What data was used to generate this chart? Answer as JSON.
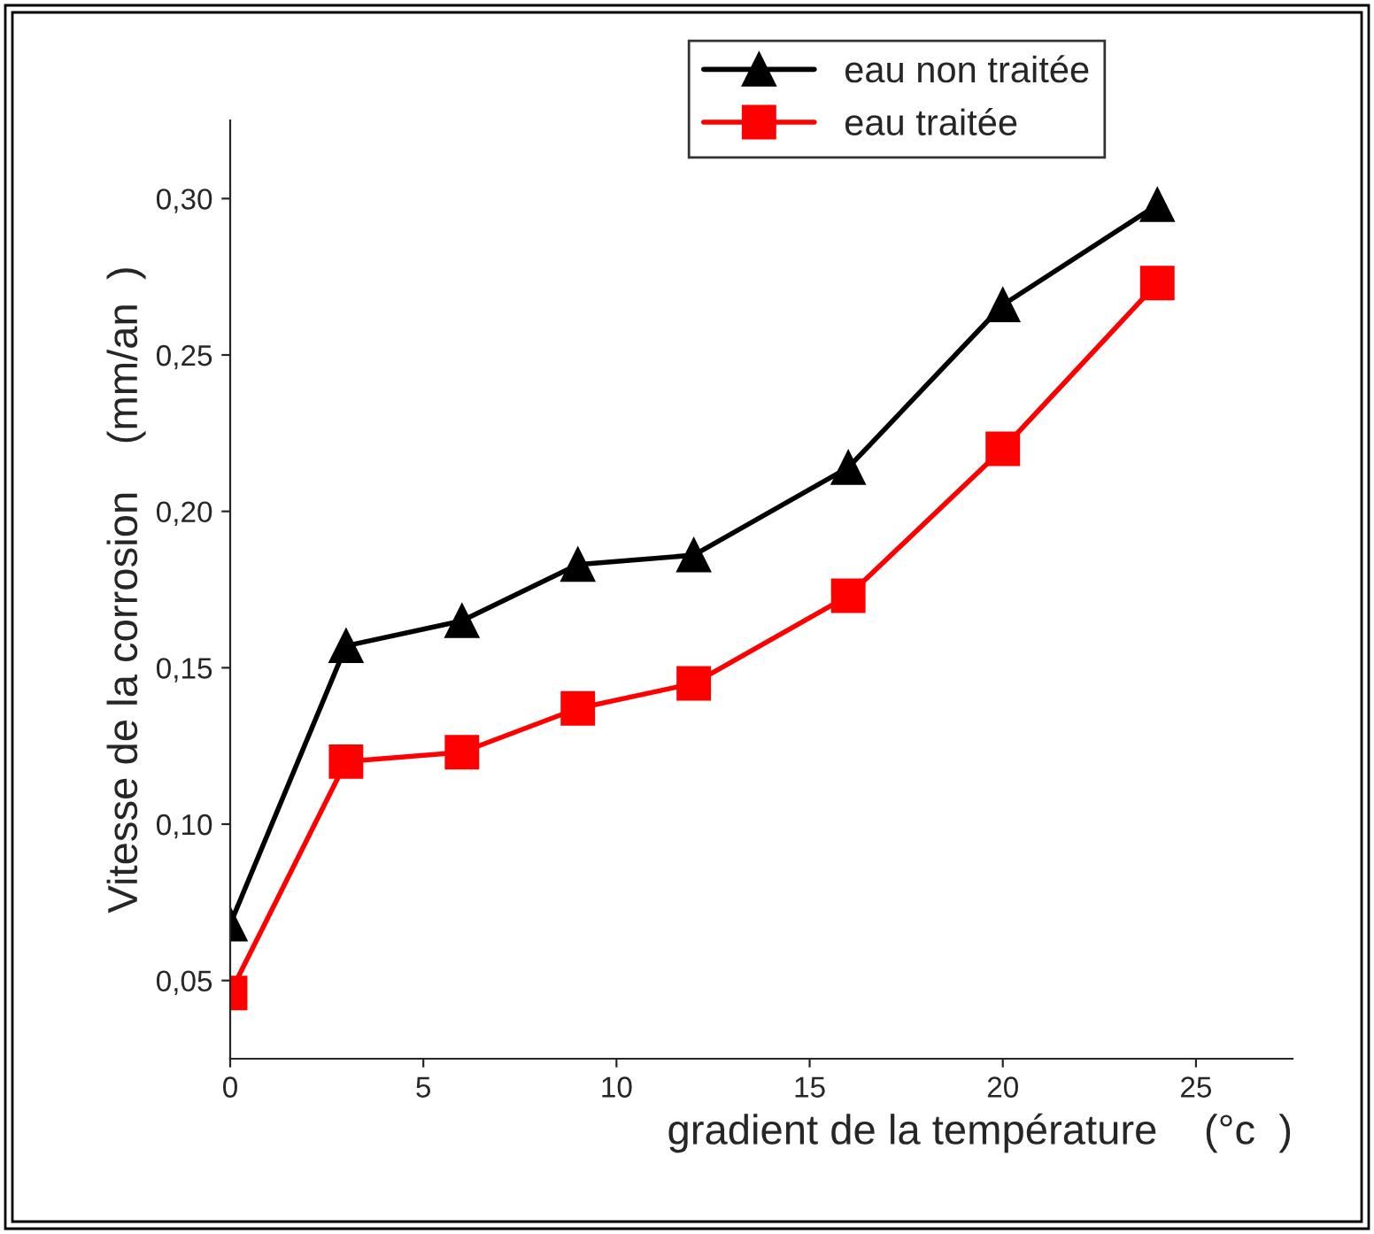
{
  "chart_data": {
    "type": "line",
    "xlabel": "gradient de la température    (°c  )",
    "ylabel": "Vitesse de la corrosion    (mm/an  )",
    "x": [
      0,
      3,
      6,
      9,
      12,
      16,
      20,
      24
    ],
    "series": [
      {
        "name": "eau non traitée",
        "color": "#000000",
        "marker": "triangle",
        "values": [
          0.068,
          0.157,
          0.165,
          0.183,
          0.186,
          0.214,
          0.266,
          0.298
        ]
      },
      {
        "name": "eau traitée",
        "color": "#ff0000",
        "marker": "square",
        "values": [
          0.046,
          0.12,
          0.123,
          0.137,
          0.145,
          0.173,
          0.22,
          0.273
        ]
      }
    ],
    "xlim": [
      0,
      27.5
    ],
    "ylim": [
      0.025,
      0.325
    ],
    "xticks": [
      0,
      5,
      10,
      15,
      20,
      25
    ],
    "yticks": [
      {
        "value": 0.05,
        "label": "0,05"
      },
      {
        "value": 0.1,
        "label": "0,10"
      },
      {
        "value": 0.15,
        "label": "0,15"
      },
      {
        "value": 0.2,
        "label": "0,20"
      },
      {
        "value": 0.25,
        "label": "0,25"
      },
      {
        "value": 0.3,
        "label": "0,30"
      }
    ],
    "grid": false,
    "legend": "top right",
    "line_style": "solid"
  }
}
